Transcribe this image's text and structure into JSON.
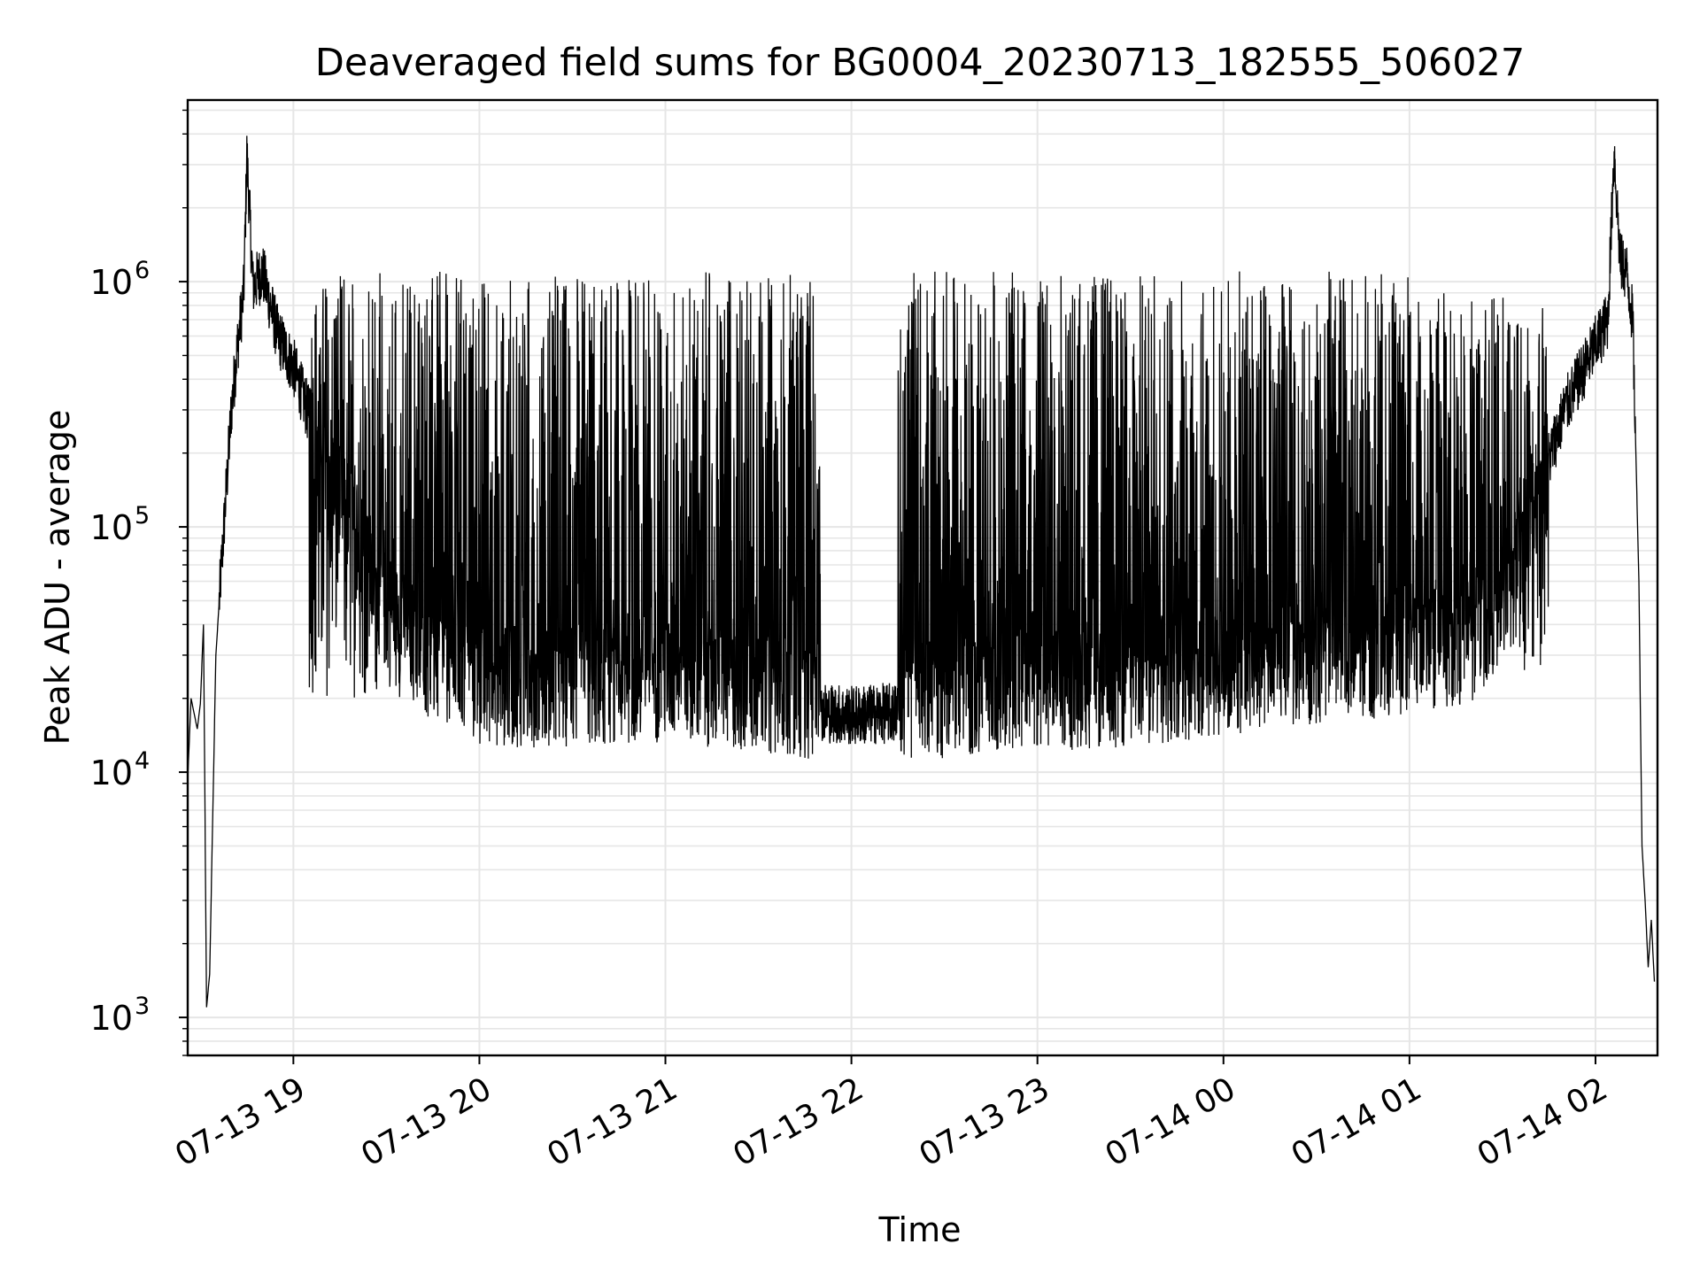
{
  "chart_data": {
    "type": "line",
    "title": "Deaveraged field sums for BG0004_20230713_182555_506027",
    "xlabel": "Time",
    "ylabel": "Peak ADU - average",
    "yscale": "log",
    "ylim": [
      700,
      5500000
    ],
    "xlim": [
      "2023-07-13 18:25:55",
      "2023-07-14 02:20:00"
    ],
    "grid": true,
    "x_ticks": [
      "07-13 19",
      "07-13 20",
      "07-13 21",
      "07-13 22",
      "07-13 23",
      "07-14 00",
      "07-14 01",
      "07-14 02"
    ],
    "y_ticks": [
      1000,
      10000,
      100000,
      1000000
    ],
    "line_color": "#000000",
    "series": [
      {
        "points": [
          [
            "2023-07-13 18:26",
            10000
          ],
          [
            "2023-07-13 18:27",
            20000
          ],
          [
            "2023-07-13 18:29",
            15000
          ],
          [
            "2023-07-13 18:30",
            19000
          ],
          [
            "2023-07-13 18:31",
            40000
          ],
          [
            "2023-07-13 18:32",
            1100
          ],
          [
            "2023-07-13 18:33",
            1500
          ],
          [
            "2023-07-13 18:35",
            30000
          ],
          [
            "2023-07-13 18:38",
            120000
          ],
          [
            "2023-07-13 18:40",
            300000
          ],
          [
            "2023-07-13 18:42",
            550000
          ],
          [
            "2023-07-13 18:44",
            900000
          ],
          [
            "2023-07-13 18:45",
            3300000
          ],
          [
            "2023-07-13 18:47",
            950000
          ],
          [
            "2023-07-13 18:50",
            1100000
          ],
          [
            "2023-07-13 18:55",
            600000
          ],
          [
            "2023-07-13 19:00",
            450000
          ],
          [
            "2023-07-13 19:10",
            180000
          ],
          [
            "2023-07-13 19:20",
            80000
          ],
          [
            "2023-07-13 19:30",
            40000
          ],
          [
            "2023-07-13 19:45",
            25000
          ],
          [
            "2023-07-13 20:00",
            20000
          ],
          [
            "2023-07-13 20:30",
            20000
          ],
          [
            "2023-07-13 21:00",
            21000
          ],
          [
            "2023-07-13 21:30",
            19000
          ],
          [
            "2023-07-13 22:00",
            17000
          ],
          [
            "2023-07-13 22:30",
            18000
          ],
          [
            "2023-07-13 23:00",
            19000
          ],
          [
            "2023-07-13 23:30",
            20000
          ],
          [
            "2023-07-14 00:00",
            22000
          ],
          [
            "2023-07-14 00:30",
            25000
          ],
          [
            "2023-07-14 01:00",
            27000
          ],
          [
            "2023-07-14 01:20",
            30000
          ],
          [
            "2023-07-14 01:30",
            45000
          ],
          [
            "2023-07-14 01:40",
            120000
          ],
          [
            "2023-07-14 01:50",
            300000
          ],
          [
            "2023-07-14 02:00",
            550000
          ],
          [
            "2023-07-14 02:04",
            700000
          ],
          [
            "2023-07-14 02:06",
            3400000
          ],
          [
            "2023-07-14 02:08",
            1200000
          ],
          [
            "2023-07-14 02:10",
            1100000
          ],
          [
            "2023-07-14 02:12",
            700000
          ],
          [
            "2023-07-14 02:14",
            60000
          ],
          [
            "2023-07-14 02:15",
            5000
          ],
          [
            "2023-07-14 02:16",
            3000
          ],
          [
            "2023-07-14 02:17",
            1600
          ],
          [
            "2023-07-14 02:18",
            2500
          ],
          [
            "2023-07-14 02:19",
            1400
          ]
        ],
        "spike_bands": [
          {
            "from": "2023-07-13 19:05",
            "to": "2023-07-13 21:50",
            "low": 20000,
            "high": 1100000
          },
          {
            "from": "2023-07-13 22:15",
            "to": "2023-07-14 01:00",
            "low": 18000,
            "high": 1100000
          },
          {
            "from": "2023-07-14 01:00",
            "to": "2023-07-14 01:45",
            "low": 25000,
            "high": 900000
          }
        ]
      }
    ]
  }
}
